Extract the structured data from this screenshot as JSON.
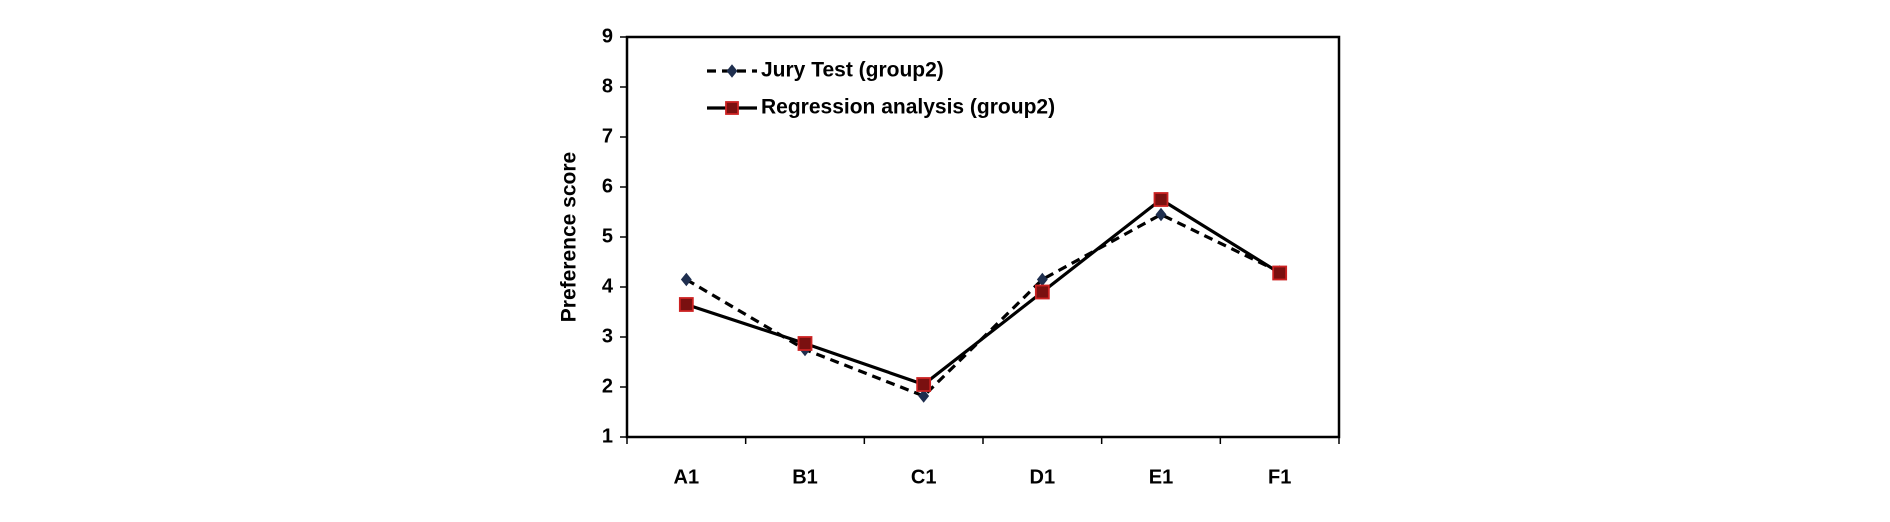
{
  "chart_data": {
    "type": "line",
    "title": "",
    "xlabel": "",
    "ylabel": "Preference score",
    "categories": [
      "A1",
      "B1",
      "C1",
      "D1",
      "E1",
      "F1"
    ],
    "ylim": [
      1,
      9
    ],
    "yticks": [
      "1",
      "2",
      "3",
      "4",
      "5",
      "6",
      "7",
      "8",
      "9"
    ],
    "grid": false,
    "legend_position": "top-left",
    "series": [
      {
        "name": "Jury Test (group2)",
        "values": [
          4.15,
          2.75,
          1.82,
          4.15,
          5.45,
          4.3
        ],
        "line_style": "dashed",
        "marker": "diamond",
        "line_color": "#000000",
        "marker_color": "#1f2f4f"
      },
      {
        "name": "Regression analysis (group2)",
        "values": [
          3.65,
          2.87,
          2.05,
          3.9,
          5.75,
          4.28
        ],
        "line_style": "solid",
        "marker": "square",
        "line_color": "#000000",
        "marker_color": "#7a1010",
        "marker_edge_color": "#cc2222"
      }
    ]
  }
}
